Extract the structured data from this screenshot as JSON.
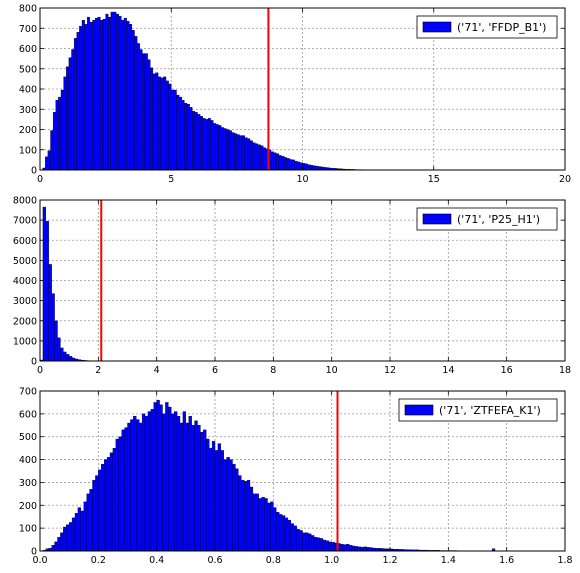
{
  "chart_data": [
    {
      "type": "bar",
      "series": [
        {
          "name": "('71', 'FFDP_B1')",
          "x_start": 0,
          "bin_width": 0.1,
          "values": [
            0,
            10,
            65,
            95,
            195,
            285,
            345,
            360,
            395,
            460,
            510,
            555,
            595,
            650,
            680,
            710,
            740,
            720,
            755,
            730,
            740,
            750,
            755,
            740,
            745,
            770,
            755,
            780,
            780,
            770,
            760,
            740,
            750,
            735,
            720,
            690,
            660,
            625,
            595,
            575,
            575,
            545,
            505,
            475,
            480,
            460,
            455,
            460,
            440,
            425,
            395,
            395,
            370,
            360,
            345,
            330,
            325,
            310,
            290,
            285,
            275,
            265,
            255,
            250,
            255,
            245,
            230,
            225,
            220,
            210,
            205,
            200,
            195,
            185,
            180,
            175,
            170,
            170,
            160,
            155,
            145,
            135,
            130,
            125,
            120,
            110,
            105,
            100,
            90,
            85,
            80,
            72,
            68,
            62,
            58,
            52,
            50,
            44,
            40,
            36,
            33,
            30,
            26,
            24,
            21,
            19,
            17,
            15,
            13,
            12,
            10,
            9,
            8,
            7,
            6,
            5,
            4,
            4,
            3,
            3,
            2,
            2,
            2,
            1,
            1,
            1
          ]
        }
      ],
      "marker_line": 8.7,
      "xlim": [
        0,
        20
      ],
      "ylim": [
        0,
        800
      ],
      "x_ticks": [
        "0",
        "5",
        "10",
        "15",
        "20"
      ],
      "y_ticks": [
        "0",
        "100",
        "200",
        "300",
        "400",
        "500",
        "600",
        "700",
        "800"
      ],
      "legend_position": "top-right",
      "grid": true,
      "colors": {
        "bar": "#0000ff",
        "marker": "#ff0000"
      }
    },
    {
      "type": "bar",
      "series": [
        {
          "name": "('71', 'P25_H1')",
          "x_start": 0,
          "bin_width": 0.1,
          "values": [
            50,
            7650,
            6950,
            4800,
            3350,
            2000,
            1150,
            650,
            450,
            330,
            230,
            150,
            100,
            70,
            45,
            30,
            20,
            12,
            8,
            5,
            3
          ]
        }
      ],
      "marker_line": 2.1,
      "xlim": [
        0,
        18
      ],
      "ylim": [
        0,
        8000
      ],
      "x_ticks": [
        "0",
        "2",
        "4",
        "6",
        "8",
        "10",
        "12",
        "14",
        "16",
        "18"
      ],
      "y_ticks": [
        "0",
        "1000",
        "2000",
        "3000",
        "4000",
        "5000",
        "6000",
        "7000",
        "8000"
      ],
      "legend_position": "top-right",
      "grid": true,
      "colors": {
        "bar": "#0000ff",
        "marker": "#ff0000"
      }
    },
    {
      "type": "bar",
      "series": [
        {
          "name": "('71', 'ZTFEFA_K1')",
          "x_start": 0.0,
          "bin_width": 0.01,
          "values": [
            0,
            3,
            10,
            12,
            25,
            40,
            60,
            80,
            105,
            115,
            125,
            145,
            165,
            190,
            175,
            215,
            250,
            270,
            310,
            330,
            355,
            380,
            400,
            410,
            430,
            450,
            490,
            500,
            530,
            540,
            560,
            575,
            590,
            575,
            560,
            600,
            590,
            610,
            620,
            650,
            660,
            640,
            600,
            650,
            630,
            600,
            610,
            590,
            560,
            610,
            560,
            590,
            550,
            570,
            550,
            520,
            530,
            490,
            450,
            480,
            440,
            470,
            440,
            400,
            410,
            400,
            380,
            360,
            330,
            310,
            305,
            310,
            280,
            250,
            250,
            230,
            235,
            230,
            210,
            215,
            190,
            170,
            160,
            155,
            145,
            135,
            120,
            110,
            95,
            90,
            80,
            80,
            75,
            68,
            60,
            58,
            55,
            48,
            45,
            40,
            38,
            35,
            33,
            30,
            28,
            30,
            25,
            22,
            20,
            18,
            17,
            18,
            16,
            15,
            13,
            12,
            12,
            11,
            10,
            10,
            9,
            8,
            8,
            7,
            7,
            6,
            6,
            5,
            5,
            5,
            4,
            4,
            4,
            3,
            3,
            3,
            3,
            2,
            2,
            2,
            2,
            2,
            2,
            1,
            1,
            1,
            1,
            1,
            1,
            1,
            1,
            1,
            1,
            1,
            1,
            10,
            1,
            1,
            1,
            1
          ]
        }
      ],
      "marker_line": 1.02,
      "xlim": [
        0.0,
        1.8
      ],
      "ylim": [
        0,
        700
      ],
      "x_ticks": [
        "0.0",
        "0.2",
        "0.4",
        "0.6",
        "0.8",
        "1.0",
        "1.2",
        "1.4",
        "1.6",
        "1.8"
      ],
      "y_ticks": [
        "0",
        "100",
        "200",
        "300",
        "400",
        "500",
        "600",
        "700"
      ],
      "legend_position": "top-right",
      "grid": true,
      "colors": {
        "bar": "#0000ff",
        "marker": "#ff0000"
      }
    }
  ]
}
